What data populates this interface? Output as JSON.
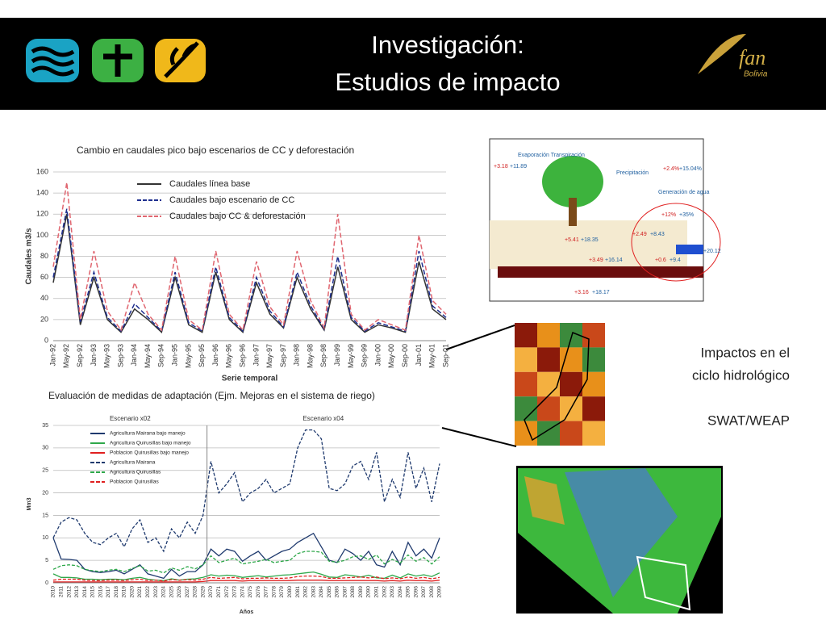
{
  "header": {
    "title_line1": "Investigación:",
    "title_line2": "Estudios de impacto",
    "logo_text": "fan",
    "logo_subtext": "Bolivia"
  },
  "side_text": {
    "line1": "Impactos en el",
    "line2": "ciclo hidrológico",
    "line3": "SWAT/WEAP"
  },
  "diagram": {
    "labels": [
      "+3.18",
      "+11.89",
      "Evaporación Transpiración",
      "Precipitación",
      "+2.4%",
      "+15.04%",
      "Generación de agua",
      "+12%",
      "+35%",
      "+2.49",
      "+8.43",
      "+5.41",
      "+18.35",
      "+3.49",
      "+16.14",
      "+0.6",
      "+9.4",
      "+20.12",
      "+3.16",
      "+18.17"
    ]
  },
  "chart_data": [
    {
      "type": "line",
      "title": "Cambio en caudales pico bajo escenarios de CC y deforestación",
      "x_label": "Serie temporal",
      "y_label": "Caudales m3/s",
      "categories": [
        "Jan-92",
        "May-92",
        "Sep-92",
        "Jan-93",
        "May-93",
        "Sep-93",
        "Jan-94",
        "May-94",
        "Sep-94",
        "Jan-95",
        "May-95",
        "Sep-95",
        "Jan-96",
        "May-96",
        "Sep-96",
        "Jan-97",
        "May-97",
        "Sep-97",
        "Jan-98",
        "May-98",
        "Sep-98",
        "Jan-99",
        "May-99",
        "Sep-99",
        "Jan-00",
        "May-00",
        "Sep-00",
        "Jan-01",
        "May-01",
        "Sep-01"
      ],
      "ylim": [
        0,
        160
      ],
      "yticks": [
        0,
        20,
        40,
        60,
        80,
        100,
        120,
        140,
        160
      ],
      "grid": true,
      "series": [
        {
          "name": "Caudales línea base",
          "color": "#333333",
          "dash": false,
          "values": [
            55,
            120,
            15,
            60,
            20,
            8,
            30,
            20,
            8,
            60,
            15,
            8,
            65,
            20,
            8,
            55,
            25,
            12,
            60,
            30,
            10,
            70,
            20,
            8,
            15,
            12,
            8,
            75,
            30,
            20
          ]
        },
        {
          "name": "Caudales bajo escenario de CC",
          "color": "#1f2f8f",
          "dash": true,
          "values": [
            60,
            125,
            18,
            65,
            22,
            9,
            35,
            22,
            9,
            65,
            17,
            9,
            70,
            22,
            9,
            60,
            28,
            13,
            65,
            33,
            11,
            80,
            22,
            9,
            17,
            13,
            9,
            85,
            33,
            22
          ]
        },
        {
          "name": "Caudales bajo CC & deforestación",
          "color": "#e06670",
          "dash": true,
          "values": [
            70,
            150,
            20,
            85,
            28,
            10,
            55,
            25,
            10,
            80,
            20,
            10,
            85,
            25,
            10,
            75,
            32,
            15,
            85,
            38,
            12,
            120,
            25,
            10,
            20,
            15,
            10,
            100,
            38,
            25
          ]
        }
      ]
    },
    {
      "type": "line",
      "title": "Evaluación de medidas de adaptación (Ejm. Mejoras en el sistema de riego)",
      "x_label": "Años",
      "y_label": "Mm3",
      "annotations": [
        "Escenario x02",
        "Escenario x04"
      ],
      "categories": [
        "2010",
        "2011",
        "2012",
        "2013",
        "2014",
        "2015",
        "2016",
        "2017",
        "2018",
        "2019",
        "2020",
        "2021",
        "2022",
        "2023",
        "2024",
        "2025",
        "2026",
        "2027",
        "2028",
        "2029",
        "2070",
        "2071",
        "2072",
        "2073",
        "2074",
        "2075",
        "2076",
        "2077",
        "2078",
        "2079",
        "2080",
        "2081",
        "2082",
        "2083",
        "2084",
        "2085",
        "2086",
        "2087",
        "2088",
        "2089",
        "2090",
        "2091",
        "2092",
        "2093",
        "2094",
        "2095",
        "2096",
        "2097",
        "2098",
        "2099"
      ],
      "ylim": [
        0,
        35
      ],
      "yticks": [
        0,
        5,
        10,
        15,
        20,
        25,
        30,
        35
      ],
      "grid": true,
      "series": [
        {
          "name": "Agricultura Mairana bajo manejo",
          "color": "#1f3a6e",
          "dash": false,
          "values": [
            10,
            5.3,
            5.2,
            5,
            3,
            2.5,
            2.3,
            2.5,
            2.8,
            2,
            3,
            4,
            2,
            1.5,
            1,
            3,
            1.5,
            2.5,
            2.5,
            4,
            7.5,
            6,
            7.5,
            7,
            4.8,
            6,
            7,
            5,
            6,
            7,
            7.5,
            9,
            10,
            11,
            8,
            5,
            4.5,
            7.5,
            6.5,
            5,
            7,
            4,
            3.5,
            7,
            4,
            9,
            6,
            7.5,
            5.5,
            10
          ]
        },
        {
          "name": "Agricultura  Quirusillas bajo manejo",
          "color": "#2ea84a",
          "dash": false,
          "values": [
            2,
            1.2,
            1.2,
            1.1,
            0.8,
            0.8,
            0.7,
            0.8,
            0.8,
            0.7,
            1,
            1.2,
            0.8,
            0.6,
            0.5,
            0.9,
            0.6,
            0.8,
            0.9,
            1.2,
            1.8,
            1.5,
            1.7,
            1.6,
            1.2,
            1.4,
            1.6,
            1.3,
            1.5,
            1.7,
            1.8,
            2,
            2.2,
            2.4,
            1.9,
            1.3,
            1.2,
            1.8,
            1.6,
            1.3,
            1.7,
            1.1,
            1,
            1.7,
            1.1,
            2,
            1.5,
            1.8,
            1.4,
            2.2
          ]
        },
        {
          "name": "Poblacion Quirusillas bajo manejo",
          "color": "#e02020",
          "dash": false,
          "values": [
            0.2,
            0.2,
            0.2,
            0.2,
            0.2,
            0.2,
            0.2,
            0.2,
            0.2,
            0.2,
            0.2,
            0.2,
            0.2,
            0.2,
            0.2,
            0.2,
            0.2,
            0.2,
            0.2,
            0.3,
            0.5,
            0.5,
            0.5,
            0.5,
            0.4,
            0.5,
            0.5,
            0.5,
            0.5,
            0.5,
            0.5,
            0.6,
            0.6,
            0.6,
            0.6,
            0.5,
            0.5,
            0.5,
            0.5,
            0.5,
            0.5,
            0.5,
            0.4,
            0.5,
            0.4,
            0.6,
            0.5,
            0.5,
            0.4,
            0.6
          ]
        },
        {
          "name": "Agricultura Mairana",
          "color": "#1f3a6e",
          "dash": true,
          "values": [
            10,
            13.5,
            14.5,
            14,
            11,
            9,
            8.5,
            10,
            11,
            8,
            12,
            14,
            9,
            10,
            7,
            12,
            10,
            13.5,
            11,
            15,
            27,
            20,
            22,
            24.5,
            18,
            20,
            21,
            23,
            20,
            21,
            22,
            30,
            34,
            34,
            32,
            21,
            20.5,
            22,
            26,
            27,
            23,
            29,
            18,
            23,
            19,
            29,
            21,
            25.5,
            18,
            26.5
          ]
        },
        {
          "name": "Agricultura Quirusillas",
          "color": "#2ea84a",
          "dash": true,
          "values": [
            3,
            3.8,
            4,
            3.8,
            3,
            2.7,
            2.5,
            2.8,
            3,
            2.5,
            3.2,
            3.8,
            2.6,
            2.8,
            2.2,
            3.3,
            2.8,
            3.6,
            3.1,
            4,
            6,
            4.5,
            5,
            5.5,
            4.2,
            4.5,
            4.8,
            5.2,
            4.5,
            4.8,
            5,
            6.5,
            7,
            7,
            6.8,
            4.8,
            4.6,
            5,
            5.8,
            6,
            5.2,
            6.2,
            4.2,
            5.2,
            4.4,
            6.2,
            4.8,
            5.6,
            4.2,
            5.8
          ]
        },
        {
          "name": "Poblacion Quirusillas",
          "color": "#e02020",
          "dash": true,
          "values": [
            0.6,
            0.8,
            0.8,
            0.8,
            0.6,
            0.5,
            0.5,
            0.6,
            0.6,
            0.5,
            0.7,
            0.8,
            0.5,
            0.6,
            0.4,
            0.7,
            0.6,
            0.7,
            0.6,
            0.8,
            1.2,
            1,
            1.1,
            1.2,
            0.9,
            1,
            1,
            1.1,
            1,
            1,
            1.1,
            1.4,
            1.5,
            1.5,
            1.4,
            1,
            1,
            1.1,
            1.2,
            1.3,
            1.1,
            1.3,
            0.9,
            1.1,
            0.9,
            1.3,
            1,
            1.2,
            0.9,
            1.2
          ]
        }
      ]
    }
  ]
}
